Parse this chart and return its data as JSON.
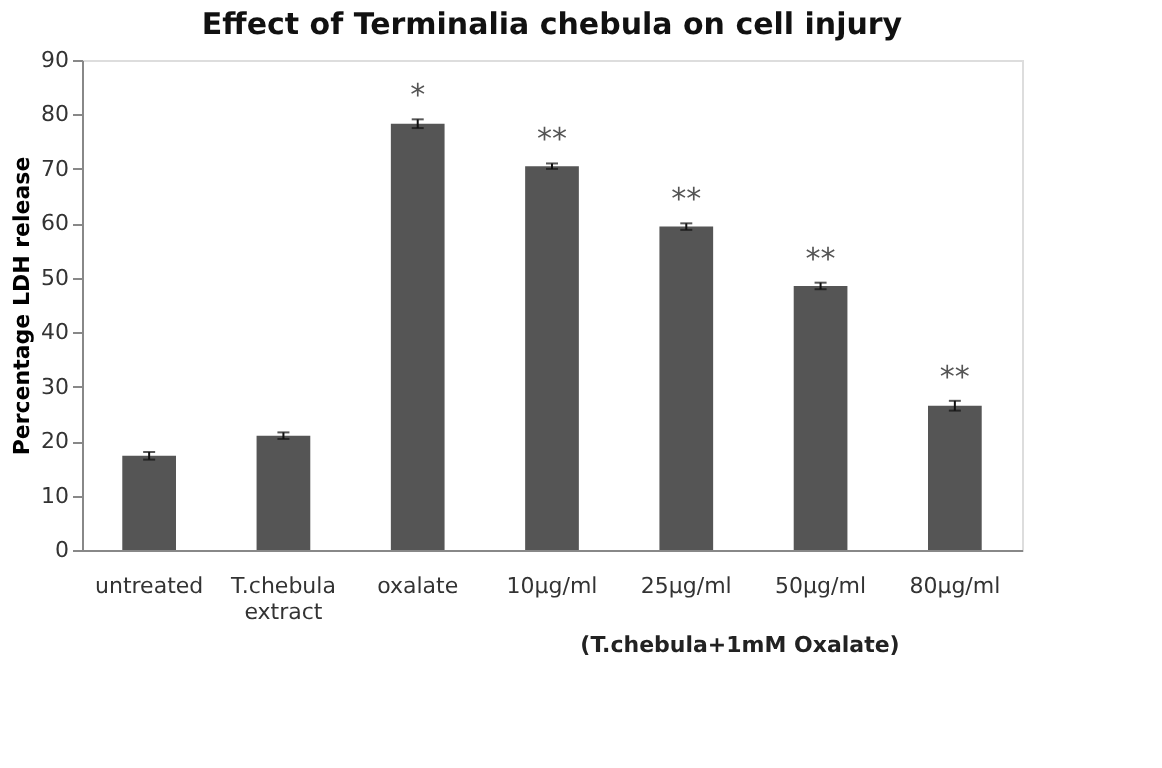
{
  "chart_data": {
    "type": "bar",
    "title": "Effect of Terminalia chebula on cell injury",
    "ylabel": "Percentage LDH release",
    "categories": [
      "untreated",
      "T.chebula extract",
      "oxalate",
      "10µg/ml",
      "25µg/ml",
      "50µg/ml",
      "80µg/ml"
    ],
    "values": [
      17.3,
      21.0,
      78.3,
      70.5,
      59.4,
      48.5,
      26.5
    ],
    "errors": [
      0.7,
      0.6,
      0.8,
      0.5,
      0.6,
      0.6,
      0.9
    ],
    "color": "#555555",
    "value_labels": [
      null,
      null,
      "*",
      "**",
      "**",
      "**",
      "**"
    ],
    "ylim": [
      0,
      90
    ],
    "yticks": [
      0,
      10,
      20,
      30,
      40,
      50,
      60,
      70,
      80,
      90
    ],
    "grid": false,
    "annotations": [
      "(T.chebula+1mM Oxalate)"
    ]
  }
}
